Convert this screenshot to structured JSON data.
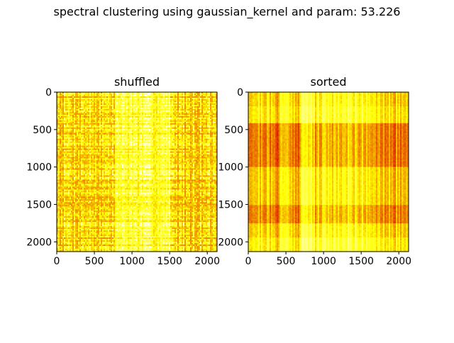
{
  "figure": {
    "title": "spectral clustering using gaussian_kernel and param: 53.226"
  },
  "chart_data": [
    {
      "type": "heatmap",
      "title": "shuffled",
      "colormap": "hot",
      "value_range": [
        0,
        1
      ],
      "xlim": [
        0,
        2130
      ],
      "ylim": [
        2130,
        0
      ],
      "xticks": [
        0,
        500,
        1000,
        1500,
        2000
      ],
      "yticks": [
        0,
        500,
        1000,
        1500,
        2000
      ],
      "description_rows": 2130,
      "description_cols": 2130,
      "pattern": "noisy, no visible block structure; red/yellow alternating stripes"
    },
    {
      "type": "heatmap",
      "title": "sorted",
      "colormap": "hot",
      "value_range": [
        0,
        1
      ],
      "xlim": [
        0,
        2130
      ],
      "ylim": [
        2130,
        0
      ],
      "xticks": [
        0,
        500,
        1000,
        1500,
        2000
      ],
      "yticks": [
        0,
        500,
        1000,
        1500,
        2000
      ],
      "row_blocks": [
        0,
        180,
        420,
        1000,
        1500,
        1760,
        1950,
        2130
      ],
      "col_blocks": [
        0,
        280,
        420,
        560,
        700,
        880,
        1000,
        1650,
        2130
      ],
      "pattern": "block structure after sorting by cluster"
    }
  ]
}
